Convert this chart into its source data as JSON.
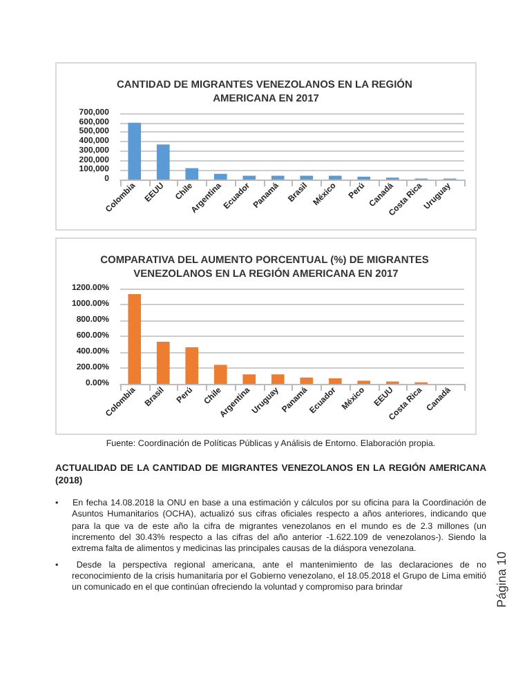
{
  "chart_data": [
    {
      "type": "bar",
      "title": "CANTIDAD DE MIGRANTES VENEZOLANOS EN LA REGIÓN AMERICANA EN 2017",
      "categories": [
        "Colombia",
        "EEUU",
        "Chile",
        "Argentina",
        "Ecuador",
        "Panamá",
        "Brasil",
        "México",
        "Perú",
        "Canadá",
        "Costa Rica",
        "Uruguay"
      ],
      "series": [
        {
          "color": "#5b9bd5",
          "values": [
            600000,
            370000,
            120000,
            60000,
            40000,
            40000,
            40000,
            40000,
            30000,
            20000,
            10000,
            10000
          ]
        }
      ],
      "ylim": [
        0,
        700000
      ],
      "yticks": [
        {
          "value": 0,
          "label": "0"
        },
        {
          "value": 100000,
          "label": "100,000"
        },
        {
          "value": 200000,
          "label": "200,000"
        },
        {
          "value": 300000,
          "label": "300,000"
        },
        {
          "value": 400000,
          "label": "400,000"
        },
        {
          "value": 500000,
          "label": "500,000"
        },
        {
          "value": 600000,
          "label": "600,000"
        },
        {
          "value": 700000,
          "label": "700,000"
        }
      ],
      "grid": "y"
    },
    {
      "type": "bar",
      "title": "COMPARATIVA DEL AUMENTO PORCENTUAL (%) DE MIGRANTES VENEZOLANOS EN LA REGIÓN AMERICANA EN 2017",
      "categories": [
        "Colombia",
        "Brasil",
        "Perú",
        "Chile",
        "Argentina",
        "Uruguay",
        "Panamá",
        "Ecuador",
        "México",
        "EEUU",
        "Costa Rica",
        "Canadá"
      ],
      "series": [
        {
          "color": "#ed7d31",
          "values": [
            1130,
            530,
            460,
            240,
            120,
            120,
            80,
            70,
            40,
            30,
            20,
            0
          ]
        }
      ],
      "ylim": [
        0,
        1200
      ],
      "yticks": [
        {
          "value": 0,
          "label": "0.00%"
        },
        {
          "value": 200,
          "label": "200.00%"
        },
        {
          "value": 400,
          "label": "400.00%"
        },
        {
          "value": 600,
          "label": "600.00%"
        },
        {
          "value": 800,
          "label": "800.00%"
        },
        {
          "value": 1000,
          "label": "1000.00%"
        },
        {
          "value": 1200,
          "label": "1200.00%"
        }
      ],
      "grid": "y",
      "annotations": [
        "Fuente: Coordinación de Políticas Públicas y Análisis de Entorno. Elaboración propia.",
        "ACTUALIDAD DE LA CANTIDAD DE MIGRANTES VENEZOLANOS EN LA REGIÓN AMERICANA (2018)",
        "•\tEn fecha 14.08.2018 la ONU en base a una estimación y cálculos por su oficina para la Coordinación de Asuntos Humanitarios (OCHA), actualizó sus cifras oficiales respecto a años anteriores, indicando que para la que va de este año la cifra de migrantes venezolanos en el mundo es de 2.3 millones (un incremento del 30.43% respecto a las cifras del año anterior -1.622.109 de venezolanos-). Siendo la extrema falta de alimentos y medicinas las principales causas de la diáspora venezolana.",
        "•\tDesde la perspectiva regional americana, ante el mantenimiento de las declaraciones de no reconocimiento de la crisis humanitaria por el Gobierno venezolano, el 18.05.2018 el Grupo de Lima emitió un comunicado en el que continúan ofreciendo la voluntad y compromiso para brindar",
        "Página 10"
      ]
    }
  ]
}
